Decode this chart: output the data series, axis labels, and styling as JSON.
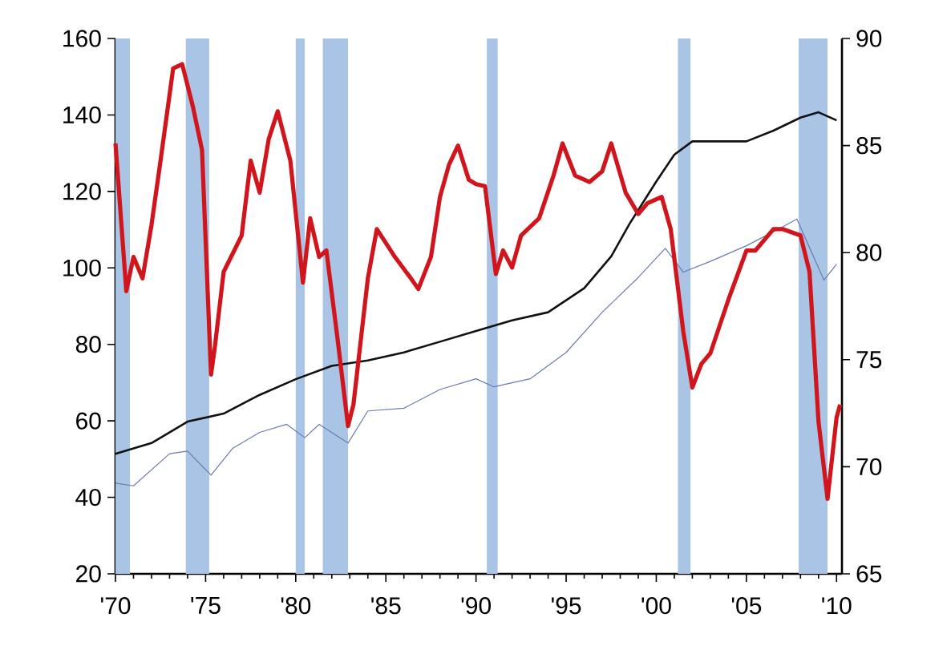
{
  "chart_data": {
    "type": "line",
    "xlim": [
      1970,
      2010.3
    ],
    "xticks": [
      {
        "value": 1970,
        "label": "'70"
      },
      {
        "value": 1975,
        "label": "'75"
      },
      {
        "value": 1980,
        "label": "'80"
      },
      {
        "value": 1985,
        "label": "'85"
      },
      {
        "value": 1990,
        "label": "'90"
      },
      {
        "value": 1995,
        "label": "'95"
      },
      {
        "value": 2000,
        "label": "'00"
      },
      {
        "value": 2005,
        "label": "'05"
      },
      {
        "value": 2010,
        "label": "'10"
      }
    ],
    "ylim": [
      20,
      160
    ],
    "yticks": [
      20,
      40,
      60,
      80,
      100,
      120,
      140,
      160
    ],
    "y2lim": [
      65,
      90
    ],
    "y2ticks": [
      65,
      70,
      75,
      80,
      85,
      90
    ],
    "bands": [
      {
        "axis": "x",
        "from": 1970.0,
        "to": 1970.8,
        "color": "#a9c4e4"
      },
      {
        "axis": "x",
        "from": 1973.9,
        "to": 1975.2,
        "color": "#a9c4e4"
      },
      {
        "axis": "x",
        "from": 1980.0,
        "to": 1980.5,
        "color": "#a9c4e4"
      },
      {
        "axis": "x",
        "from": 1981.5,
        "to": 1982.9,
        "color": "#a9c4e4"
      },
      {
        "axis": "x",
        "from": 1990.6,
        "to": 1991.2,
        "color": "#a9c4e4"
      },
      {
        "axis": "x",
        "from": 2001.2,
        "to": 2001.9,
        "color": "#a9c4e4"
      },
      {
        "axis": "x",
        "from": 2007.9,
        "to": 2009.5,
        "color": "#a9c4e4"
      }
    ],
    "series": [
      {
        "color": "#6b7bb0",
        "x": [
          1970,
          1971,
          1973,
          1974,
          1975.3,
          1976.5,
          1978,
          1979.5,
          1980.5,
          1981.3,
          1982.9,
          1984,
          1986,
          1988,
          1990,
          1991,
          1993,
          1995,
          1997,
          1999,
          2000.5,
          2001.5,
          2003,
          2005,
          2007,
          2007.8,
          2009.3,
          2010
        ],
        "values": [
          43.7,
          43,
          51.4,
          52.1,
          45.8,
          52.8,
          57,
          59.1,
          55.6,
          59.1,
          54.2,
          62.6,
          63.3,
          68.2,
          71,
          68.9,
          71,
          77.9,
          88.4,
          97.5,
          105.1,
          98.9,
          101.7,
          105.8,
          110.7,
          112.8,
          96.8,
          101
        ]
      },
      {
        "color": "#111111",
        "x": [
          1970,
          1972,
          1974,
          1976,
          1978,
          1980,
          1982,
          1984,
          1986,
          1988,
          1990,
          1992,
          1994,
          1996,
          1997.5,
          1998.5,
          2000,
          2001,
          2002,
          2003.5,
          2005,
          2006.5,
          2008,
          2009,
          2010
        ],
        "values": [
          51.4,
          54.2,
          59.8,
          61.9,
          66.8,
          70.9,
          74.4,
          75.8,
          77.9,
          80.7,
          83.5,
          86.3,
          88.4,
          94.7,
          103,
          111.4,
          122.6,
          129.6,
          133.1,
          133.1,
          133.1,
          135.9,
          139.3,
          140.7,
          138.6
        ]
      },
      {
        "color": "#d0161c",
        "axis": "y2",
        "x": [
          1970.0,
          1970.6,
          1971,
          1971.5,
          1972,
          1972.5,
          1973.2,
          1973.7,
          1974.3,
          1974.8,
          1975.3,
          1975.5,
          1976,
          1977,
          1977.5,
          1978,
          1978.5,
          1979,
          1979.7,
          1980.4,
          1980.8,
          1981.3,
          1981.7,
          1982.3,
          1982.9,
          1983.2,
          1984,
          1984.5,
          1985.5,
          1986.3,
          1986.8,
          1987.5,
          1988,
          1988.5,
          1989,
          1989.6,
          1990,
          1990.5,
          1991.1,
          1991.5,
          1992,
          1992.5,
          1993.5,
          1994.3,
          1994.8,
          1995.5,
          1996.3,
          1997,
          1997.5,
          1998.3,
          1999,
          1999.5,
          2000.3,
          2000.8,
          2001.5,
          2002,
          2002.5,
          2003,
          2004,
          2005,
          2005.5,
          2006.5,
          2007,
          2008,
          2008.5,
          2009,
          2009.5,
          2010,
          2010.2
        ],
        "values": [
          85.1,
          78.2,
          79.8,
          78.8,
          81.3,
          84.3,
          88.6,
          88.8,
          86.8,
          84.8,
          74.3,
          75.5,
          79.1,
          80.8,
          84.3,
          82.8,
          85.3,
          86.6,
          84.3,
          78.6,
          81.6,
          79.8,
          80.1,
          76.1,
          71.9,
          72.9,
          78.8,
          81.1,
          79.8,
          78.9,
          78.3,
          79.8,
          82.6,
          84.1,
          85.0,
          83.4,
          83.2,
          83.1,
          79.0,
          80.1,
          79.3,
          80.8,
          81.6,
          83.6,
          85.1,
          83.6,
          83.3,
          83.8,
          85.1,
          82.8,
          81.8,
          82.3,
          82.6,
          81.1,
          76.3,
          73.7,
          74.8,
          75.3,
          77.8,
          80.1,
          80.1,
          81.1,
          81.1,
          80.8,
          79.1,
          72.1,
          68.5,
          72.3,
          72.9
        ]
      }
    ]
  }
}
